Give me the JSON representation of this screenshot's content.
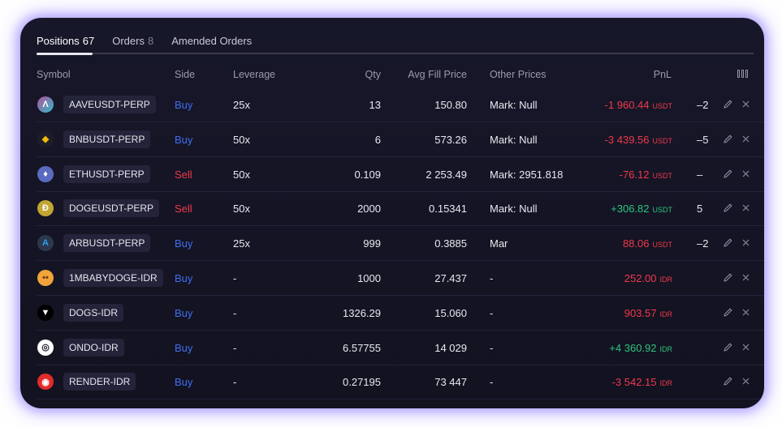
{
  "tabs": [
    {
      "label": "Positions",
      "count": "67",
      "active": true
    },
    {
      "label": "Orders",
      "count": "8",
      "active": false
    },
    {
      "label": "Amended Orders",
      "count": "",
      "active": false
    }
  ],
  "table": {
    "headers": {
      "symbol": "Symbol",
      "side": "Side",
      "leverage": "Leverage",
      "qty": "Qty",
      "avg_fill_price": "Avg Fill Price",
      "other_prices": "Other Prices",
      "pnl": "PnL"
    },
    "rows": [
      {
        "icon": "aave-coin-icon",
        "icon_color": "#2f6fd8",
        "symbol": "AAVEUSDT-PERP",
        "side": "Buy",
        "side_type": "buy",
        "leverage": "25x",
        "qty": "13",
        "avg_fill_price": "150.80",
        "other_prices": "Mark: Null",
        "pnl": "-1 960.44",
        "pnl_currency": "USDT",
        "pnl_type": "neg",
        "extra": "–2"
      },
      {
        "icon": "bnb-coin-icon",
        "icon_color": "#f0b90b",
        "symbol": "BNBUSDT-PERP",
        "side": "Buy",
        "side_type": "buy",
        "leverage": "50x",
        "qty": "6",
        "avg_fill_price": "573.26",
        "other_prices": "Mark: Null",
        "pnl": "-3 439.56",
        "pnl_currency": "USDT",
        "pnl_type": "neg",
        "extra": "–5"
      },
      {
        "icon": "eth-coin-icon",
        "icon_color": "#6f7ccc",
        "symbol": "ETHUSDT-PERP",
        "side": "Sell",
        "side_type": "sell",
        "leverage": "50x",
        "qty": "0.109",
        "avg_fill_price": "2 253.49",
        "other_prices": "Mark: 2951.818",
        "pnl": "-76.12",
        "pnl_currency": "USDT",
        "pnl_type": "neg",
        "extra": "–"
      },
      {
        "icon": "doge-coin-icon",
        "icon_color": "#c2a633",
        "symbol": "DOGEUSDT-PERP",
        "side": "Sell",
        "side_type": "sell",
        "leverage": "50x",
        "qty": "2000",
        "avg_fill_price": "0.15341",
        "other_prices": "Mark: Null",
        "pnl": "+306.82",
        "pnl_currency": "USDT",
        "pnl_type": "pos",
        "extra": "5"
      },
      {
        "icon": "arb-coin-icon",
        "icon_color": "#28a0f0",
        "symbol": "ARBUSDT-PERP",
        "side": "Buy",
        "side_type": "buy",
        "leverage": "25x",
        "qty": "999",
        "avg_fill_price": "0.3885",
        "other_prices": "Mar",
        "pnl": "88.06",
        "pnl_currency": "USDT",
        "pnl_type": "neg",
        "extra": "–2"
      },
      {
        "icon": "babydoge-coin-icon",
        "icon_color": "#f2a43a",
        "symbol": "1MBABYDOGE-IDR",
        "side": "Buy",
        "side_type": "buy",
        "leverage": "-",
        "qty": "1000",
        "avg_fill_price": "27.437",
        "other_prices": "-",
        "pnl": "252.00",
        "pnl_currency": "IDR",
        "pnl_type": "neg",
        "extra": ""
      },
      {
        "icon": "dogs-coin-icon",
        "icon_color": "#000000",
        "symbol": "DOGS-IDR",
        "side": "Buy",
        "side_type": "buy",
        "leverage": "-",
        "qty": "1326.29",
        "avg_fill_price": "15.060",
        "other_prices": "-",
        "pnl": "903.57",
        "pnl_currency": "IDR",
        "pnl_type": "neg",
        "extra": ""
      },
      {
        "icon": "ondo-coin-icon",
        "icon_color": "#ffffff",
        "symbol": "ONDO-IDR",
        "side": "Buy",
        "side_type": "buy",
        "leverage": "-",
        "qty": "6.57755",
        "avg_fill_price": "14 029",
        "other_prices": "-",
        "pnl": "+4 360.92",
        "pnl_currency": "IDR",
        "pnl_type": "pos",
        "extra": ""
      },
      {
        "icon": "render-coin-icon",
        "icon_color": "#e22b2b",
        "symbol": "RENDER-IDR",
        "side": "Buy",
        "side_type": "buy",
        "leverage": "-",
        "qty": "0.27195",
        "avg_fill_price": "73 447",
        "other_prices": "-",
        "pnl": "-3 542.15",
        "pnl_currency": "IDR",
        "pnl_type": "neg",
        "extra": ""
      }
    ]
  },
  "icons": {
    "edit": "pencil-icon",
    "close": "close-icon",
    "columns": "columns-icon"
  },
  "colors": {
    "buy": "#3f6ff0",
    "sell": "#f0394a",
    "positive": "#2ec57d",
    "negative": "#f0394a",
    "glow": "#7864ff"
  }
}
